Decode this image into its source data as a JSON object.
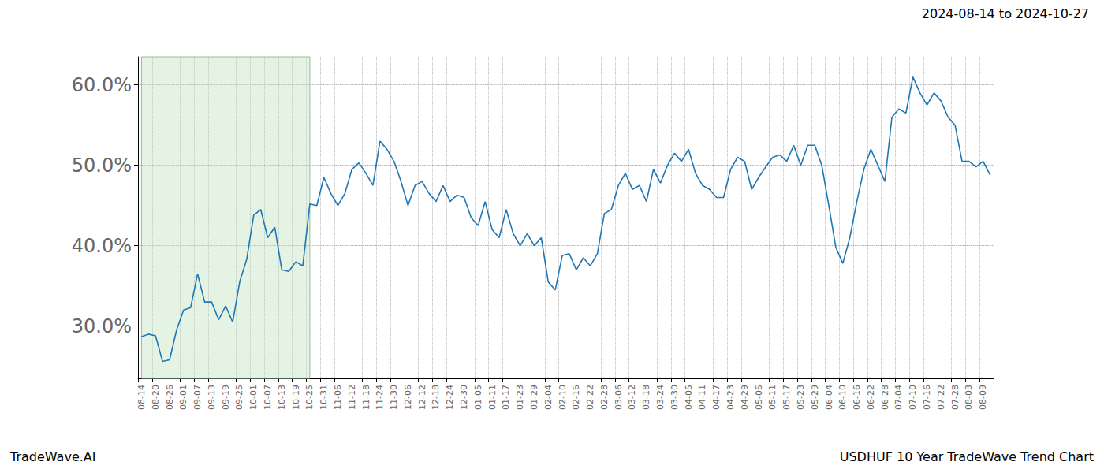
{
  "chart_data": {
    "type": "line",
    "title": "2024-08-14 to 2024-10-27",
    "annotations": [
      "TradeWave.AI",
      "USDHUF 10 Year TradeWave Trend Chart"
    ],
    "shaded_range": {
      "from": "08-14",
      "to": "10-25"
    },
    "categories": [
      "08-14",
      null,
      "08-20",
      null,
      "08-26",
      null,
      "09-01",
      null,
      "09-07",
      null,
      "09-13",
      null,
      "09-19",
      null,
      "09-25",
      null,
      "10-01",
      null,
      "10-07",
      null,
      "10-13",
      null,
      "10-19",
      null,
      "10-25",
      null,
      "10-31",
      null,
      "11-06",
      null,
      "11-12",
      null,
      "11-18",
      null,
      "11-24",
      null,
      "11-30",
      null,
      "12-06",
      null,
      "12-12",
      null,
      "12-18",
      null,
      "12-24",
      null,
      "12-30",
      null,
      "01-05",
      null,
      "01-11",
      null,
      "01-17",
      null,
      "01-23",
      null,
      "01-29",
      null,
      "02-04",
      null,
      "02-10",
      null,
      "02-16",
      null,
      "02-22",
      null,
      "02-28",
      null,
      "03-06",
      null,
      "03-12",
      null,
      "03-18",
      null,
      "03-24",
      null,
      "03-30",
      null,
      "04-05",
      null,
      "04-11",
      null,
      "04-17",
      null,
      "04-23",
      null,
      "04-29",
      null,
      "05-05",
      null,
      "05-11",
      null,
      "05-17",
      null,
      "05-23",
      null,
      "05-29",
      null,
      "06-04",
      null,
      "06-10",
      null,
      "06-16",
      null,
      "06-22",
      null,
      "06-28",
      null,
      "07-04",
      null,
      "07-10",
      null,
      "07-16",
      null,
      "07-22",
      null,
      "07-28",
      null,
      "08-03",
      null,
      "08-09",
      null
    ],
    "values": [
      28.7,
      29.0,
      28.8,
      25.6,
      25.8,
      29.5,
      32.0,
      32.3,
      36.5,
      33.0,
      33.0,
      30.8,
      32.5,
      30.5,
      35.5,
      38.3,
      43.8,
      44.5,
      41.0,
      42.3,
      37.0,
      36.8,
      38.0,
      37.5,
      45.2,
      45.0,
      48.5,
      46.5,
      45.0,
      46.5,
      49.5,
      50.3,
      49.0,
      47.5,
      53.0,
      52.0,
      50.5,
      48.0,
      45.0,
      47.5,
      48.0,
      46.5,
      45.5,
      47.5,
      45.5,
      46.3,
      46.0,
      43.5,
      42.5,
      45.5,
      42.0,
      41.0,
      44.5,
      41.5,
      40.0,
      41.5,
      40.0,
      41.0,
      35.5,
      34.5,
      38.8,
      39.0,
      37.0,
      38.5,
      37.5,
      39.0,
      44.0,
      44.5,
      47.5,
      49.0,
      47.0,
      47.5,
      45.5,
      49.5,
      47.8,
      50.0,
      51.5,
      50.5,
      52.0,
      49.0,
      47.5,
      47.0,
      46.0,
      46.0,
      49.5,
      51.0,
      50.5,
      47.0,
      48.5,
      49.8,
      51.0,
      51.3,
      50.5,
      52.5,
      50.0,
      52.5,
      52.5,
      50.0,
      45.0,
      39.8,
      37.8,
      41.0,
      45.5,
      49.5,
      52.0,
      50.0,
      48.0,
      56.0,
      57.0,
      56.5,
      61.0,
      59.0,
      57.5,
      59.0,
      58.0,
      56.0,
      55.0,
      50.5,
      50.5,
      49.8,
      50.5,
      48.8
    ],
    "color": "#1f77b4",
    "ylim": [
      23.5,
      63.5
    ],
    "yticks": [
      {
        "value": 30,
        "label": "30.0%"
      },
      {
        "value": 40,
        "label": "40.0%"
      },
      {
        "value": 50,
        "label": "50.0%"
      },
      {
        "value": 60,
        "label": "60.0%"
      }
    ],
    "grid": true
  }
}
